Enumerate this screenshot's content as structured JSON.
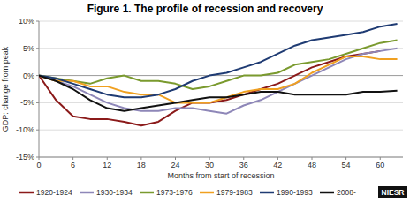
{
  "chart_data": {
    "type": "line",
    "title": "Figure 1. The profile of recession and recovery",
    "x_label": "Months from start of recession",
    "y_label": "GDP: change from peak",
    "annotations": [
      "NIESR"
    ],
    "x": [
      0,
      3,
      6,
      9,
      12,
      15,
      18,
      21,
      24,
      27,
      30,
      33,
      36,
      39,
      42,
      45,
      48,
      51,
      54,
      57,
      60,
      63
    ],
    "series": [
      {
        "name": "1920-1924",
        "color": "#8b1a1a",
        "values": [
          0,
          -4.5,
          -7.5,
          -8,
          -8,
          -8.5,
          -9.2,
          -8.5,
          -6.5,
          -5,
          -5,
          -4.5,
          -3.5,
          -2.5,
          -1.5,
          0,
          1.5,
          2.5,
          3.5,
          4,
          4.5,
          null
        ]
      },
      {
        "name": "1930-1934",
        "color": "#8e87b8",
        "values": [
          0,
          -1,
          -2,
          -3.5,
          -5,
          -6,
          -6.5,
          -6.5,
          -6,
          -6,
          -6.5,
          -7,
          -5.5,
          -4.5,
          -3,
          -1.5,
          0,
          1.5,
          3,
          4,
          4.5,
          5
        ]
      },
      {
        "name": "1973-1976",
        "color": "#7a9a2e",
        "values": [
          0,
          -0.5,
          -1,
          -1.5,
          -0.5,
          0,
          -1,
          -1,
          -1.5,
          -2.5,
          -2,
          -1,
          0,
          0,
          0.5,
          2,
          2.5,
          3,
          4,
          5,
          6,
          6.5
        ]
      },
      {
        "name": "1979-1983",
        "color": "#f0a020",
        "values": [
          0,
          -1,
          -1,
          -2,
          -2,
          -3,
          -3.5,
          -3.5,
          -5,
          -5,
          -5,
          -4,
          -3,
          -2.5,
          -2.5,
          -1.5,
          0.5,
          2,
          3.5,
          3.5,
          3,
          3
        ]
      },
      {
        "name": "1990-1993",
        "color": "#1f3b73",
        "values": [
          0,
          -0.5,
          -1.5,
          -2.5,
          -3.5,
          -4,
          -4,
          -3.5,
          -2.5,
          -1,
          0,
          0.5,
          1.5,
          2.5,
          4,
          5.5,
          6.5,
          7,
          7.5,
          8,
          9,
          9.5
        ]
      },
      {
        "name": "2008-",
        "color": "#111111",
        "values": [
          0,
          -1,
          -2.5,
          -4.5,
          -6,
          -6.5,
          -6,
          -5.5,
          -5,
          -4.5,
          -4,
          -4,
          -3.5,
          -3,
          -3,
          -3.5,
          -3.5,
          -3.5,
          -3.5,
          -3,
          -3,
          -2.8
        ]
      }
    ],
    "xlim": [
      0,
      64
    ],
    "xticks": [
      0,
      6,
      12,
      18,
      24,
      30,
      36,
      42,
      48,
      54,
      60
    ],
    "ylim": [
      -15,
      10
    ],
    "yticks": [
      {
        "value": -15,
        "label": "-15%"
      },
      {
        "value": -10,
        "label": "-10%"
      },
      {
        "value": -5,
        "label": "-5%"
      },
      {
        "value": 0,
        "label": "0%"
      },
      {
        "value": 5,
        "label": "5%"
      },
      {
        "value": 10,
        "label": "10%"
      }
    ],
    "grid": true,
    "legend": "bottom"
  }
}
